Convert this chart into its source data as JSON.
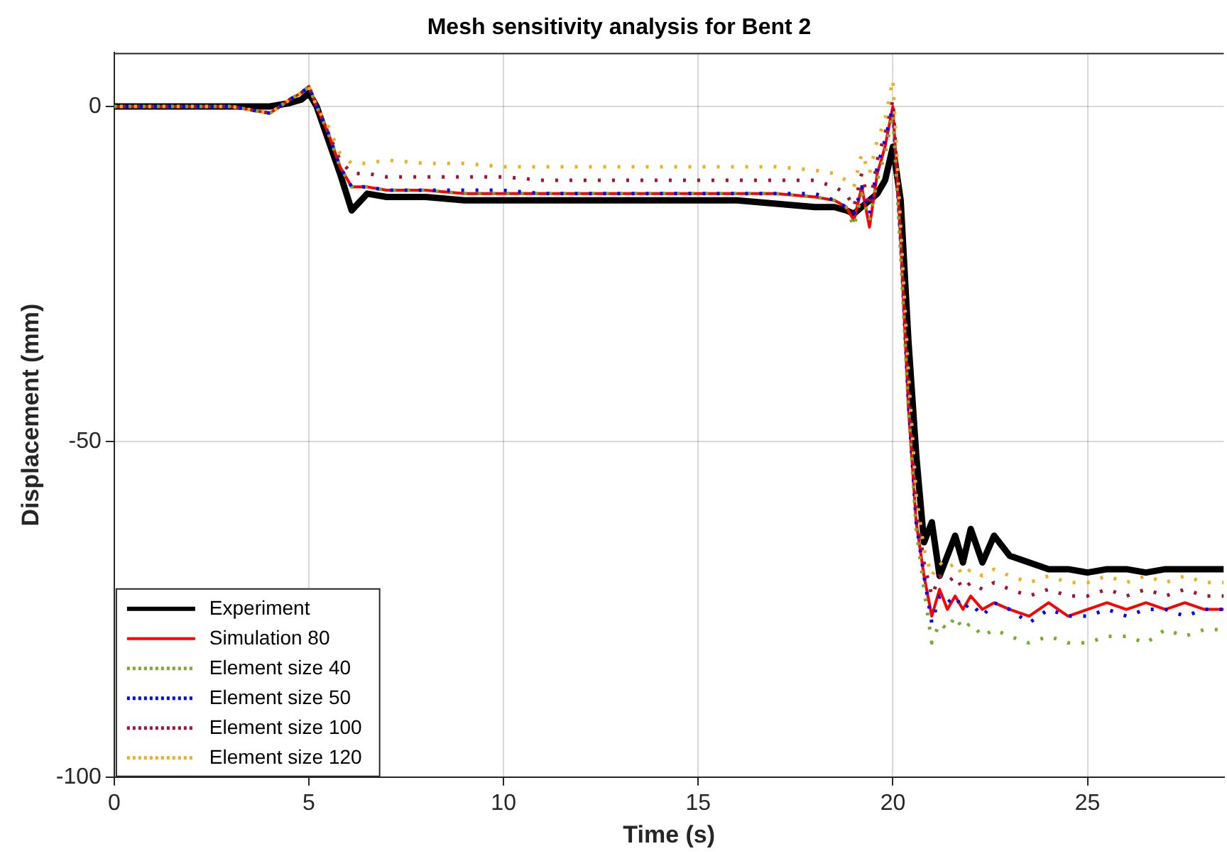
{
  "chart_data": {
    "type": "line",
    "title": "Mesh sensitivity analysis for Bent 2",
    "xlabel": "Time (s)",
    "ylabel": "Displacement (mm)",
    "x": [
      0,
      1,
      2,
      3,
      4,
      4.5,
      4.8,
      5,
      5.2,
      5.5,
      5.8,
      6.1,
      6.5,
      7,
      8,
      9,
      10,
      11,
      12,
      13,
      14,
      15,
      16,
      17,
      18,
      18.5,
      18.8,
      19,
      19.2,
      19.4,
      19.6,
      19.8,
      20,
      20.2,
      20.4,
      20.6,
      20.8,
      21,
      21.2,
      21.4,
      21.6,
      21.8,
      22,
      22.3,
      22.6,
      23,
      23.5,
      24,
      24.5,
      25,
      25.5,
      26,
      26.5,
      27,
      27.5,
      28,
      28.5
    ],
    "xlim": [
      0,
      28.5
    ],
    "xticks": [
      0,
      5,
      10,
      15,
      20,
      25
    ],
    "ylim": [
      -100,
      8
    ],
    "yticks": [
      -100,
      -50,
      0
    ],
    "grid": true,
    "legend": "bottom left",
    "marker": "none",
    "series": [
      {
        "name": "Experiment",
        "color": "#000000",
        "line_style": "solid",
        "values": [
          0,
          0,
          0,
          0,
          0,
          0.5,
          1,
          2,
          0,
          -5,
          -10,
          -15.5,
          -13,
          -13.5,
          -13.5,
          -14,
          -14,
          -14,
          -14,
          -14,
          -14,
          -14,
          -14,
          -14.5,
          -15,
          -15,
          -15.5,
          -16,
          -15,
          -14,
          -13,
          -11,
          -6,
          -14,
          -35,
          -52,
          -65,
          -62,
          -70,
          -67,
          -64,
          -68,
          -63,
          -68,
          -64,
          -67,
          -68,
          -69,
          -69,
          -69.5,
          -69,
          -69,
          -69.5,
          -69,
          -69,
          -69,
          -69
        ]
      },
      {
        "name": "Simulation 80",
        "color": "#ff0000",
        "line_style": "solid",
        "values": [
          0,
          0,
          0,
          0,
          -1,
          1,
          2,
          3,
          0,
          -4,
          -9,
          -12,
          -12,
          -12.5,
          -12.5,
          -13,
          -13,
          -13,
          -13,
          -13,
          -13,
          -13,
          -13,
          -13,
          -13.5,
          -14,
          -15,
          -17,
          -12,
          -18,
          -10,
          -6,
          0,
          -20,
          -45,
          -62,
          -70,
          -76,
          -72,
          -75,
          -73,
          -75,
          -73,
          -75,
          -74,
          -75,
          -76,
          -74,
          -76,
          -75,
          -74,
          -75,
          -74,
          -75,
          -74,
          -75,
          -75
        ]
      },
      {
        "name": "Element size 40",
        "color": "#77ac30",
        "line_style": "dotted",
        "values": [
          0,
          0,
          0,
          0,
          -1,
          1,
          2,
          3,
          0,
          -4,
          -9,
          -12,
          -12,
          -12.5,
          -12.5,
          -13,
          -13,
          -13,
          -13,
          -13,
          -13,
          -13,
          -13,
          -13,
          -13.5,
          -14,
          -15,
          -18,
          -13,
          -17,
          -11,
          -7,
          -1,
          -22,
          -45,
          -63,
          -72,
          -80,
          -77,
          -78,
          -76,
          -78,
          -77,
          -79,
          -78,
          -79,
          -80,
          -79,
          -80,
          -80,
          -79,
          -79,
          -80,
          -78,
          -79,
          -78,
          -78
        ]
      },
      {
        "name": "Element size 50",
        "color": "#0000ff",
        "line_style": "dotted",
        "values": [
          0,
          0,
          0,
          0,
          -1,
          1,
          2,
          3,
          0,
          -4,
          -9,
          -12,
          -12,
          -12.5,
          -12.5,
          -12.5,
          -12.5,
          -13,
          -13,
          -13,
          -13,
          -13,
          -13,
          -13,
          -13,
          -14,
          -15,
          -16,
          -12,
          -16,
          -9,
          -5,
          0,
          -20,
          -44,
          -62,
          -70,
          -77,
          -73,
          -74,
          -73,
          -75,
          -74,
          -76,
          -74,
          -75,
          -77,
          -75,
          -76,
          -76,
          -75,
          -76,
          -75,
          -75,
          -76,
          -75,
          -75
        ]
      },
      {
        "name": "Element size 100",
        "color": "#a2142f",
        "line_style": "dotted",
        "values": [
          0,
          0,
          0,
          0,
          -1,
          1,
          2,
          3,
          0,
          -4,
          -8,
          -10,
          -10,
          -10.5,
          -10.5,
          -10.5,
          -10.5,
          -11,
          -11,
          -11,
          -11,
          -11,
          -11,
          -11,
          -11,
          -12,
          -13,
          -15,
          -10,
          -15,
          -8,
          -4,
          1,
          -20,
          -42,
          -60,
          -68,
          -73,
          -70,
          -71,
          -70,
          -72,
          -71,
          -72,
          -71,
          -72,
          -73,
          -72,
          -73,
          -73,
          -72,
          -73,
          -72,
          -73,
          -72,
          -73,
          -73
        ]
      },
      {
        "name": "Element size 120",
        "color": "#edb120",
        "line_style": "dotted",
        "values": [
          0,
          0,
          0,
          0,
          -1,
          1,
          2,
          3,
          0,
          -3,
          -7,
          -8.5,
          -8.5,
          -8,
          -8.5,
          -8.5,
          -9,
          -9,
          -9,
          -9,
          -9,
          -9,
          -9,
          -9,
          -9.5,
          -10,
          -11,
          -12,
          -7,
          -10,
          -5,
          -2,
          4,
          -18,
          -40,
          -58,
          -66,
          -70,
          -68,
          -69,
          -68,
          -70,
          -69,
          -70,
          -69,
          -70,
          -71,
          -70,
          -71,
          -71,
          -70,
          -71,
          -70,
          -71,
          -70,
          -71,
          -71
        ]
      }
    ]
  }
}
